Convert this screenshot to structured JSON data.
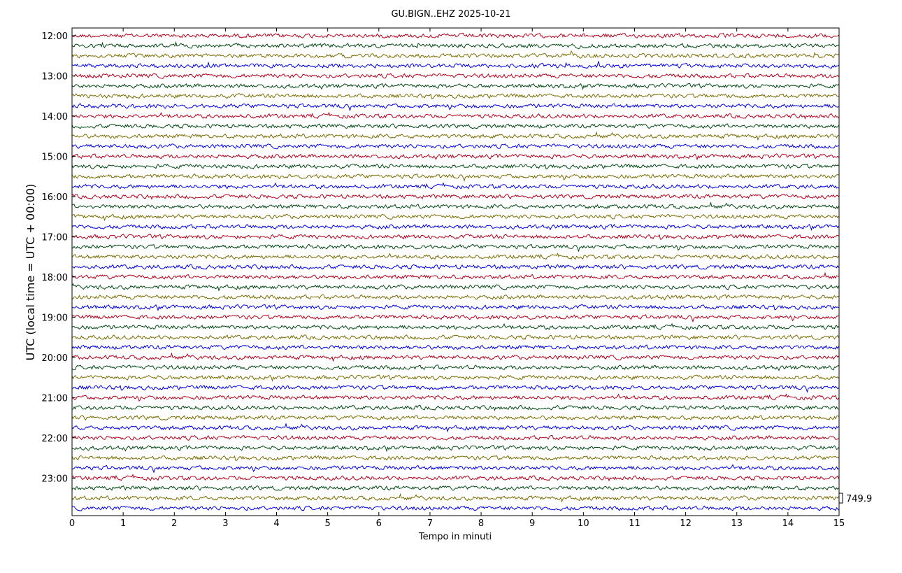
{
  "chart_data": {
    "type": "line",
    "title": "GU.BIGN..EHZ 2025-10-21",
    "xlabel": "Tempo in minuti",
    "ylabel": "UTC (local time = UTC + 00:00)",
    "xlim": [
      0,
      15
    ],
    "x_ticks": [
      "0",
      "1",
      "2",
      "3",
      "4",
      "5",
      "6",
      "7",
      "8",
      "9",
      "10",
      "11",
      "12",
      "13",
      "14",
      "15"
    ],
    "hour_labels": [
      "12:00",
      "13:00",
      "14:00",
      "15:00",
      "16:00",
      "17:00",
      "18:00",
      "19:00",
      "20:00",
      "21:00",
      "22:00",
      "23:00"
    ],
    "traces_per_hour": 4,
    "trace_count": 48,
    "trace_colors": [
      "#b3001b",
      "#004a12",
      "#7a6c00",
      "#0000e6"
    ],
    "scale_value": "749.9",
    "grid": false,
    "legend": "none"
  }
}
